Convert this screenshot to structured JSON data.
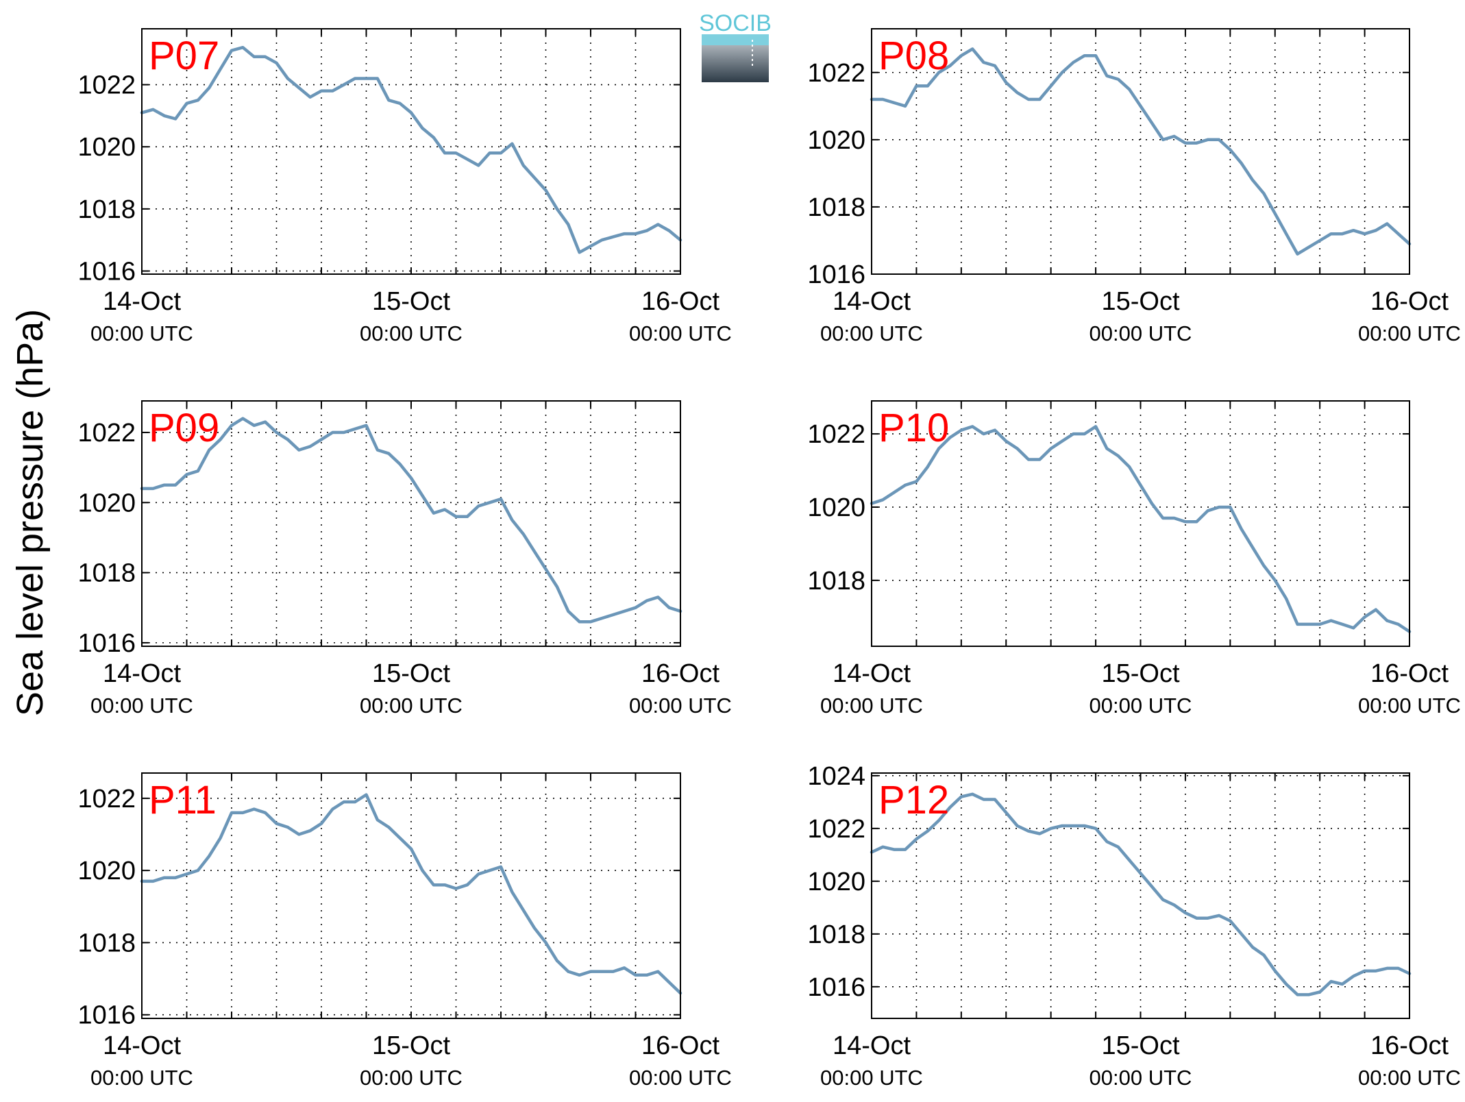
{
  "ylabel": "Sea level pressure (hPa)",
  "logo": {
    "text": "SOCIB",
    "colors": {
      "text": "#5fc6d8",
      "top": "#a9b1b8",
      "bottom": "#2d3b47"
    }
  },
  "colors": {
    "line": "#6b96b8",
    "panel_label": "#ff0000",
    "axes": "#000000",
    "grid": "#000000"
  },
  "x_ticks": [
    {
      "x": 0,
      "label": "14-Oct",
      "sublabel": "00:00 UTC"
    },
    {
      "x": 24,
      "label": "15-Oct",
      "sublabel": "00:00 UTC"
    },
    {
      "x": 48,
      "label": "16-Oct",
      "sublabel": "00:00 UTC"
    }
  ],
  "chart_data": [
    {
      "type": "line",
      "label": "P07",
      "xlim": [
        0,
        48
      ],
      "ylim": [
        1015.9,
        1023.8
      ],
      "yticks": [
        1016,
        1018,
        1020,
        1022
      ],
      "grid": true,
      "x": [
        0,
        1,
        2,
        3,
        4,
        5,
        6,
        7,
        8,
        9,
        10,
        11,
        12,
        13,
        14,
        15,
        16,
        17,
        18,
        19,
        20,
        21,
        22,
        23,
        24,
        25,
        26,
        27,
        28,
        29,
        30,
        31,
        32,
        33,
        34,
        35,
        36,
        37,
        38,
        39,
        40,
        41,
        42,
        43,
        44,
        45,
        46,
        47,
        48
      ],
      "y": [
        1021.1,
        1021.2,
        1021.0,
        1020.9,
        1021.4,
        1021.5,
        1021.9,
        1022.5,
        1023.1,
        1023.2,
        1022.9,
        1022.9,
        1022.7,
        1022.2,
        1021.9,
        1021.6,
        1021.8,
        1021.8,
        1022.0,
        1022.2,
        1022.2,
        1022.2,
        1021.5,
        1021.4,
        1021.1,
        1020.6,
        1020.3,
        1019.8,
        1019.8,
        1019.6,
        1019.4,
        1019.8,
        1019.8,
        1020.1,
        1019.4,
        1019.0,
        1018.6,
        1018.0,
        1017.5,
        1016.6,
        1016.8,
        1017.0,
        1017.1,
        1017.2,
        1017.2,
        1017.3,
        1017.5,
        1017.3,
        1017.0
      ]
    },
    {
      "type": "line",
      "label": "P08",
      "xlim": [
        0,
        48
      ],
      "ylim": [
        1016,
        1023.3
      ],
      "yticks": [
        1016,
        1018,
        1020,
        1022
      ],
      "grid": true,
      "x": [
        0,
        1,
        2,
        3,
        4,
        5,
        6,
        7,
        8,
        9,
        10,
        11,
        12,
        13,
        14,
        15,
        16,
        17,
        18,
        19,
        20,
        21,
        22,
        23,
        24,
        25,
        26,
        27,
        28,
        29,
        30,
        31,
        32,
        33,
        34,
        35,
        36,
        37,
        38,
        39,
        40,
        41,
        42,
        43,
        44,
        45,
        46,
        47,
        48
      ],
      "y": [
        1021.2,
        1021.2,
        1021.1,
        1021.0,
        1021.6,
        1021.6,
        1022.0,
        1022.2,
        1022.5,
        1022.7,
        1022.3,
        1022.2,
        1021.7,
        1021.4,
        1021.2,
        1021.2,
        1021.6,
        1022.0,
        1022.3,
        1022.5,
        1022.5,
        1021.9,
        1021.8,
        1021.5,
        1021.0,
        1020.5,
        1020.0,
        1020.1,
        1019.9,
        1019.9,
        1020.0,
        1020.0,
        1019.7,
        1019.3,
        1018.8,
        1018.4,
        1017.8,
        1017.2,
        1016.6,
        1016.8,
        1017.0,
        1017.2,
        1017.2,
        1017.3,
        1017.2,
        1017.3,
        1017.5,
        1017.2,
        1016.9
      ]
    },
    {
      "type": "line",
      "label": "P09",
      "xlim": [
        0,
        48
      ],
      "ylim": [
        1015.9,
        1022.9
      ],
      "yticks": [
        1016,
        1018,
        1020,
        1022
      ],
      "grid": true,
      "x": [
        0,
        1,
        2,
        3,
        4,
        5,
        6,
        7,
        8,
        9,
        10,
        11,
        12,
        13,
        14,
        15,
        16,
        17,
        18,
        19,
        20,
        21,
        22,
        23,
        24,
        25,
        26,
        27,
        28,
        29,
        30,
        31,
        32,
        33,
        34,
        35,
        36,
        37,
        38,
        39,
        40,
        41,
        42,
        43,
        44,
        45,
        46,
        47,
        48
      ],
      "y": [
        1020.4,
        1020.4,
        1020.5,
        1020.5,
        1020.8,
        1020.9,
        1021.5,
        1021.8,
        1022.2,
        1022.4,
        1022.2,
        1022.3,
        1022.0,
        1021.8,
        1021.5,
        1021.6,
        1021.8,
        1022.0,
        1022.0,
        1022.1,
        1022.2,
        1021.5,
        1021.4,
        1021.1,
        1020.7,
        1020.2,
        1019.7,
        1019.8,
        1019.6,
        1019.6,
        1019.9,
        1020.0,
        1020.1,
        1019.5,
        1019.1,
        1018.6,
        1018.1,
        1017.6,
        1016.9,
        1016.6,
        1016.6,
        1016.7,
        1016.8,
        1016.9,
        1017.0,
        1017.2,
        1017.3,
        1017.0,
        1016.9
      ]
    },
    {
      "type": "line",
      "label": "P10",
      "xlim": [
        0,
        48
      ],
      "ylim": [
        1016.2,
        1022.9
      ],
      "yticks": [
        1018,
        1020,
        1022
      ],
      "grid": true,
      "x": [
        0,
        1,
        2,
        3,
        4,
        5,
        6,
        7,
        8,
        9,
        10,
        11,
        12,
        13,
        14,
        15,
        16,
        17,
        18,
        19,
        20,
        21,
        22,
        23,
        24,
        25,
        26,
        27,
        28,
        29,
        30,
        31,
        32,
        33,
        34,
        35,
        36,
        37,
        38,
        39,
        40,
        41,
        42,
        43,
        44,
        45,
        46,
        47,
        48
      ],
      "y": [
        1020.1,
        1020.2,
        1020.4,
        1020.6,
        1020.7,
        1021.1,
        1021.6,
        1021.9,
        1022.1,
        1022.2,
        1022.0,
        1022.1,
        1021.8,
        1021.6,
        1021.3,
        1021.3,
        1021.6,
        1021.8,
        1022.0,
        1022.0,
        1022.2,
        1021.6,
        1021.4,
        1021.1,
        1020.6,
        1020.1,
        1019.7,
        1019.7,
        1019.6,
        1019.6,
        1019.9,
        1020.0,
        1020.0,
        1019.4,
        1018.9,
        1018.4,
        1018.0,
        1017.5,
        1016.8,
        1016.8,
        1016.8,
        1016.9,
        1016.8,
        1016.7,
        1017.0,
        1017.2,
        1016.9,
        1016.8,
        1016.6
      ]
    },
    {
      "type": "line",
      "label": "P11",
      "xlim": [
        0,
        48
      ],
      "ylim": [
        1015.9,
        1022.7
      ],
      "yticks": [
        1016,
        1018,
        1020,
        1022
      ],
      "grid": true,
      "x": [
        0,
        1,
        2,
        3,
        4,
        5,
        6,
        7,
        8,
        9,
        10,
        11,
        12,
        13,
        14,
        15,
        16,
        17,
        18,
        19,
        20,
        21,
        22,
        23,
        24,
        25,
        26,
        27,
        28,
        29,
        30,
        31,
        32,
        33,
        34,
        35,
        36,
        37,
        38,
        39,
        40,
        41,
        42,
        43,
        44,
        45,
        46,
        47,
        48
      ],
      "y": [
        1019.7,
        1019.7,
        1019.8,
        1019.8,
        1019.9,
        1020.0,
        1020.4,
        1020.9,
        1021.6,
        1021.6,
        1021.7,
        1021.6,
        1021.3,
        1021.2,
        1021.0,
        1021.1,
        1021.3,
        1021.7,
        1021.9,
        1021.9,
        1022.1,
        1021.4,
        1021.2,
        1020.9,
        1020.6,
        1020.0,
        1019.6,
        1019.6,
        1019.5,
        1019.6,
        1019.9,
        1020.0,
        1020.1,
        1019.4,
        1018.9,
        1018.4,
        1018.0,
        1017.5,
        1017.2,
        1017.1,
        1017.2,
        1017.2,
        1017.2,
        1017.3,
        1017.1,
        1017.1,
        1017.2,
        1016.9,
        1016.6
      ]
    },
    {
      "type": "line",
      "label": "P12",
      "xlim": [
        0,
        48
      ],
      "ylim": [
        1014.8,
        1024.1
      ],
      "yticks": [
        1016,
        1018,
        1020,
        1022,
        1024
      ],
      "grid": true,
      "x": [
        0,
        1,
        2,
        3,
        4,
        5,
        6,
        7,
        8,
        9,
        10,
        11,
        12,
        13,
        14,
        15,
        16,
        17,
        18,
        19,
        20,
        21,
        22,
        23,
        24,
        25,
        26,
        27,
        28,
        29,
        30,
        31,
        32,
        33,
        34,
        35,
        36,
        37,
        38,
        39,
        40,
        41,
        42,
        43,
        44,
        45,
        46,
        47,
        48
      ],
      "y": [
        1021.1,
        1021.3,
        1021.2,
        1021.2,
        1021.6,
        1021.9,
        1022.3,
        1022.8,
        1023.2,
        1023.3,
        1023.1,
        1023.1,
        1022.6,
        1022.1,
        1021.9,
        1021.8,
        1022.0,
        1022.1,
        1022.1,
        1022.1,
        1022.0,
        1021.5,
        1021.3,
        1020.8,
        1020.3,
        1019.8,
        1019.3,
        1019.1,
        1018.8,
        1018.6,
        1018.6,
        1018.7,
        1018.5,
        1018.0,
        1017.5,
        1017.2,
        1016.6,
        1016.1,
        1015.7,
        1015.7,
        1015.8,
        1016.2,
        1016.1,
        1016.4,
        1016.6,
        1016.6,
        1016.7,
        1016.7,
        1016.5
      ]
    }
  ]
}
